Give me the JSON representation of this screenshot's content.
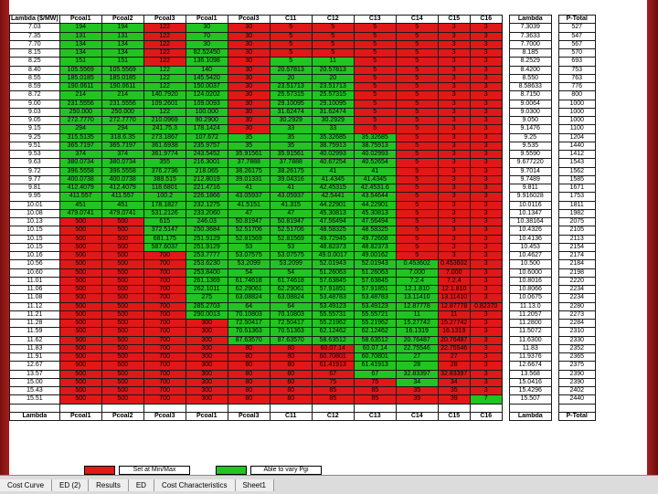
{
  "header": [
    "Lambda ($/MW)",
    "Pcoal1",
    "Pcoal2",
    "Pcoal3",
    "Pcoal1",
    "Pcoal3",
    "C11",
    "C12",
    "C13",
    "C14",
    "C15",
    "C16",
    "Lambda",
    "P-Total"
  ],
  "rows": [
    [
      "7.03",
      "194",
      "194",
      "122",
      "30",
      "30",
      "5",
      "5",
      "5",
      "5",
      "3",
      "3",
      "7.3039",
      "527"
    ],
    [
      "7.35",
      "131",
      "131",
      "122",
      "70",
      "30",
      "5",
      "5",
      "5",
      "5",
      "3",
      "3",
      "7.3633",
      "547"
    ],
    [
      "7.70",
      "134",
      "134",
      "122",
      "30",
      "30",
      "5",
      "5",
      "5",
      "5",
      "3",
      "3",
      "7.7000",
      "567"
    ],
    [
      "8.15",
      "134",
      "134",
      "122",
      "82.52450",
      "30",
      "5",
      "5",
      "5",
      "5",
      "3",
      "3",
      "8.185",
      "570"
    ],
    [
      "8.25",
      "151",
      "151",
      "122",
      "136.1098",
      "30",
      "5",
      "11",
      "5",
      "5",
      "3",
      "3",
      "8.2529",
      "693"
    ],
    [
      "8.40",
      "105.5569",
      "105.5569",
      "122",
      "140",
      "30",
      "20.57813",
      "20.57813",
      "5",
      "5",
      "3",
      "3",
      "8.4200",
      "753"
    ],
    [
      "8.55",
      "185.0185",
      "185.0185",
      "122",
      "145.5420",
      "30",
      "20",
      "20",
      "5",
      "5",
      "3",
      "3",
      "8.550",
      "763"
    ],
    [
      "8.59",
      "190.0611",
      "190.0611",
      "122",
      "150.0037",
      "30",
      "23.51713",
      "23.51713",
      "5",
      "5",
      "3",
      "3",
      "8.58633",
      "776"
    ],
    [
      "8.72",
      "214",
      "214",
      "140.7920",
      "124.0202",
      "30",
      "25.57315",
      "25.57315",
      "5",
      "5",
      "3",
      "3",
      "8.7150",
      "800"
    ],
    [
      "9.00",
      "231.5556",
      "231.5556",
      "109.2601",
      "109.0093",
      "30",
      "29.10095",
      "29.10095",
      "5",
      "5",
      "3",
      "3",
      "9.0064",
      "1000"
    ],
    [
      "9.03",
      "250.000",
      "250.000",
      "122",
      "100.000",
      "30",
      "31.62474",
      "31.62474",
      "5",
      "5",
      "3",
      "3",
      "9.0300",
      "1000"
    ],
    [
      "9.05",
      "272.7770",
      "272.7770",
      "210.0969",
      "90.2900",
      "30",
      "30.2929",
      "30.2929",
      "5",
      "5",
      "3",
      "3",
      "9.050",
      "1000"
    ],
    [
      "9.15",
      "294",
      "294",
      "241.75.3",
      "178.1424",
      "30",
      "33",
      "33",
      "5",
      "5",
      "3",
      "3",
      "9.1476",
      "1100"
    ],
    [
      "9.25",
      "315.5135",
      "318.6.35",
      "273.1867",
      "107.672",
      "35",
      "35",
      "35.32685",
      "35.32685",
      "5",
      "3",
      "3",
      "9.25",
      "1204"
    ],
    [
      "9.51",
      "365.7197",
      "365.7197",
      "361.6938",
      "235.9757",
      "35",
      "35",
      "38.75913",
      "38.75913",
      "5",
      "3",
      "3",
      "9.535",
      "1440"
    ],
    [
      "9.53",
      "374",
      "374",
      "361.9774",
      "243.5452",
      "35.91561",
      "35.91561",
      "40.02993",
      "40.02993",
      "5",
      "3",
      "3",
      "9.5590",
      "1412"
    ],
    [
      "9.63",
      "380.0734",
      "380.0734",
      "355",
      "216.3001",
      "37.7888",
      "37.7888",
      "40.67254",
      "40.52654",
      "5",
      "3",
      "3",
      "9.677220",
      "1543"
    ],
    [
      "9.72",
      "396.5558",
      "396.5558",
      "376.2736",
      "218.065",
      "38.26175",
      "38.26175",
      "41",
      "41",
      "5",
      "3",
      "3",
      "9.7014",
      "1562"
    ],
    [
      "9.77",
      "400.0738",
      "400.0738",
      "388.515",
      "212.8019",
      "39.01331",
      "39.04316",
      "41.4345",
      "41.4345",
      "5",
      "3",
      "3",
      "9.7489",
      "1585"
    ],
    [
      "9.81",
      "412.4079",
      "412.4079",
      "118.6801",
      "221.4716",
      "41",
      "41",
      "42.45315",
      "42.4531.6",
      "5",
      "3",
      "3",
      "9.811",
      "1671"
    ],
    [
      "9.95",
      "411.557",
      "411.557",
      "100.2",
      "226.1866",
      "43.05937",
      "43.05937",
      "42.5441",
      "43.54644",
      "5",
      "3",
      "3",
      "9.916028",
      "1753"
    ],
    [
      "10.01",
      "451",
      "451",
      "178.1827",
      "232.1275",
      "41.5151",
      "41.315",
      "44.22901",
      "44.22901",
      "5",
      "3",
      "3",
      "10.0116",
      "1811"
    ],
    [
      "10.08",
      "479.0741",
      "479.0741",
      "531.2126",
      "233.2060",
      "47",
      "47",
      "45.30813",
      "45.30813",
      "5",
      "3",
      "3",
      "10.1347",
      "1982"
    ],
    [
      "10.13",
      "500",
      "500",
      "615",
      "246.03",
      "50.81947",
      "50.81947",
      "47.56494",
      "47.56494",
      "5",
      "3",
      "3",
      "10.38164",
      "2075"
    ],
    [
      "10.15",
      "500",
      "500",
      "372.5147",
      "250.3684",
      "52.51706",
      "52.51706",
      "48.58325",
      "48.58325",
      "5",
      "3",
      "3",
      "10.4326",
      "2105"
    ],
    [
      "10.15",
      "500",
      "500",
      "681.175",
      "251.9129",
      "52.81569",
      "52.81569",
      "49.72945",
      "49.72668",
      "5",
      "3",
      "3",
      "10.4136",
      "2113"
    ],
    [
      "10.15",
      "500",
      "500",
      "587.6037",
      "251.9129",
      "53",
      "53",
      "48.82373",
      "48.82373",
      "5",
      "3",
      "3",
      "10.453",
      "2154"
    ],
    [
      "10.16",
      "500",
      "500",
      "700",
      "253.7777",
      "53.07575",
      "53.07575",
      "49.0.0017",
      "49.00162",
      "5",
      "3",
      "3",
      "10.4627",
      "2174"
    ],
    [
      "10.56",
      "500",
      "500",
      "700",
      "253.6230",
      "53.2099",
      "53.2099",
      "52.01943",
      "52.01943",
      "0.453602",
      "0.453602",
      "3",
      "10.500",
      "2184"
    ],
    [
      "10.60",
      "500",
      "500",
      "700",
      "253.8400",
      "54",
      "54",
      "51.26063",
      "51.26063",
      "7.000",
      "7.000",
      "3",
      "10.6000",
      "2198"
    ],
    [
      "11.01",
      "500",
      "500",
      "700",
      "261.1369",
      "61.74618",
      "61.74618",
      "57.63845",
      "57.63845",
      "7.2.4",
      "7.2.4",
      "3",
      "10.8016",
      "2220"
    ],
    [
      "11.06",
      "500",
      "500",
      "700",
      "262.1011",
      "62.29061",
      "62.29061",
      "57.91851",
      "57.91851",
      "12.1.810",
      "12.1.810",
      "3",
      "10.8066",
      "2234"
    ],
    [
      "11.08",
      "500",
      "500",
      "700",
      "275",
      "63.08824",
      "63.08824",
      "53.48783",
      "53.48783",
      "13.11410",
      "13.11410",
      "3",
      "10.0675",
      "2234"
    ],
    [
      "11.12",
      "500",
      "500",
      "700",
      "285.2703",
      "64",
      "64",
      "53.49123",
      "53.49123",
      "12.87778",
      "12.87778",
      "0.82370",
      "11.13.0",
      "2280"
    ],
    [
      "11.21",
      "500",
      "500",
      "700",
      "290.0013",
      "70.10803",
      "70.10803",
      "55.55731",
      "55.55721",
      "11",
      "11",
      "3",
      "11.2057",
      "2273"
    ],
    [
      "11.28",
      "500",
      "500",
      "700",
      "300",
      "72.50417",
      "72.50417",
      "55.21962",
      "55.21962",
      "15.27742",
      "15.27742",
      "3",
      "11.2800",
      "2284"
    ],
    [
      "11.59",
      "500",
      "500",
      "700",
      "300",
      "70.51363",
      "70.51363",
      "62.12462",
      "62.12462",
      "16.1319",
      "16.1319",
      "3",
      "11.5072",
      "2310"
    ],
    [
      "11.62",
      "500",
      "500",
      "700",
      "300",
      "87.63570",
      "87.63570",
      "58.63512",
      "58.63512",
      "20.76487",
      "20.76487",
      "3",
      "11.6300",
      "2330"
    ],
    [
      "11.83",
      "500",
      "500",
      "700",
      "300",
      "80",
      "80",
      "60.07.14",
      "60.07.14",
      "22.75546",
      "22.75546",
      "3",
      "11.83",
      "2352"
    ],
    [
      "11.91",
      "500",
      "500",
      "700",
      "300",
      "80",
      "80",
      "60.70801",
      "60.70801",
      "27",
      "27",
      "3",
      "11.9376",
      "2365"
    ],
    [
      "12.67",
      "500",
      "500",
      "700",
      "300",
      "80",
      "80",
      "61.41913",
      "61.41913",
      "28",
      "28",
      "3",
      "12.6674",
      "2375"
    ],
    [
      "13.57",
      "500",
      "500",
      "700",
      "300",
      "80",
      "80",
      "67",
      "67",
      "32.83397",
      "32.83397",
      "3",
      "13.568",
      "2390"
    ],
    [
      "15.00",
      "500",
      "500",
      "700",
      "300",
      "80",
      "80",
      "75",
      "75",
      "34",
      "34",
      "3",
      "15.0416",
      "2390"
    ],
    [
      "15.43",
      "500",
      "500",
      "700",
      "300",
      "80",
      "80",
      "85",
      "85",
      "35",
      "35",
      "3",
      "15.4296",
      "2402"
    ],
    [
      "15.51",
      "500",
      "500",
      "700",
      "300",
      "80",
      "80",
      "85",
      "85",
      "39",
      "39",
      "7",
      "15.507",
      "2440"
    ],
    [
      "",
      "",
      "",
      "",
      "",
      "",
      "",
      "",
      "",
      "",
      "",
      "",
      "",
      ""
    ]
  ],
  "footer": [
    "Lambda",
    "Pcoal1",
    "Pcoal2",
    "Pcoal3",
    "Pcoal1",
    "Pcoal3",
    "C11",
    "C12",
    "C13",
    "C14",
    "C15",
    "C16",
    "Lambda",
    "P-Total"
  ],
  "legend": {
    "red_label": "Set at Min/Max",
    "green_label": "Able to vary Pgi"
  },
  "sheet_tabs": [
    "Cost Curve",
    "ED (2)",
    "Results",
    "ED",
    "Cost Characteristics",
    "Sheet1"
  ],
  "colors": {
    "red": "#e01818",
    "green": "#22c422",
    "frame": "#8a1010"
  }
}
